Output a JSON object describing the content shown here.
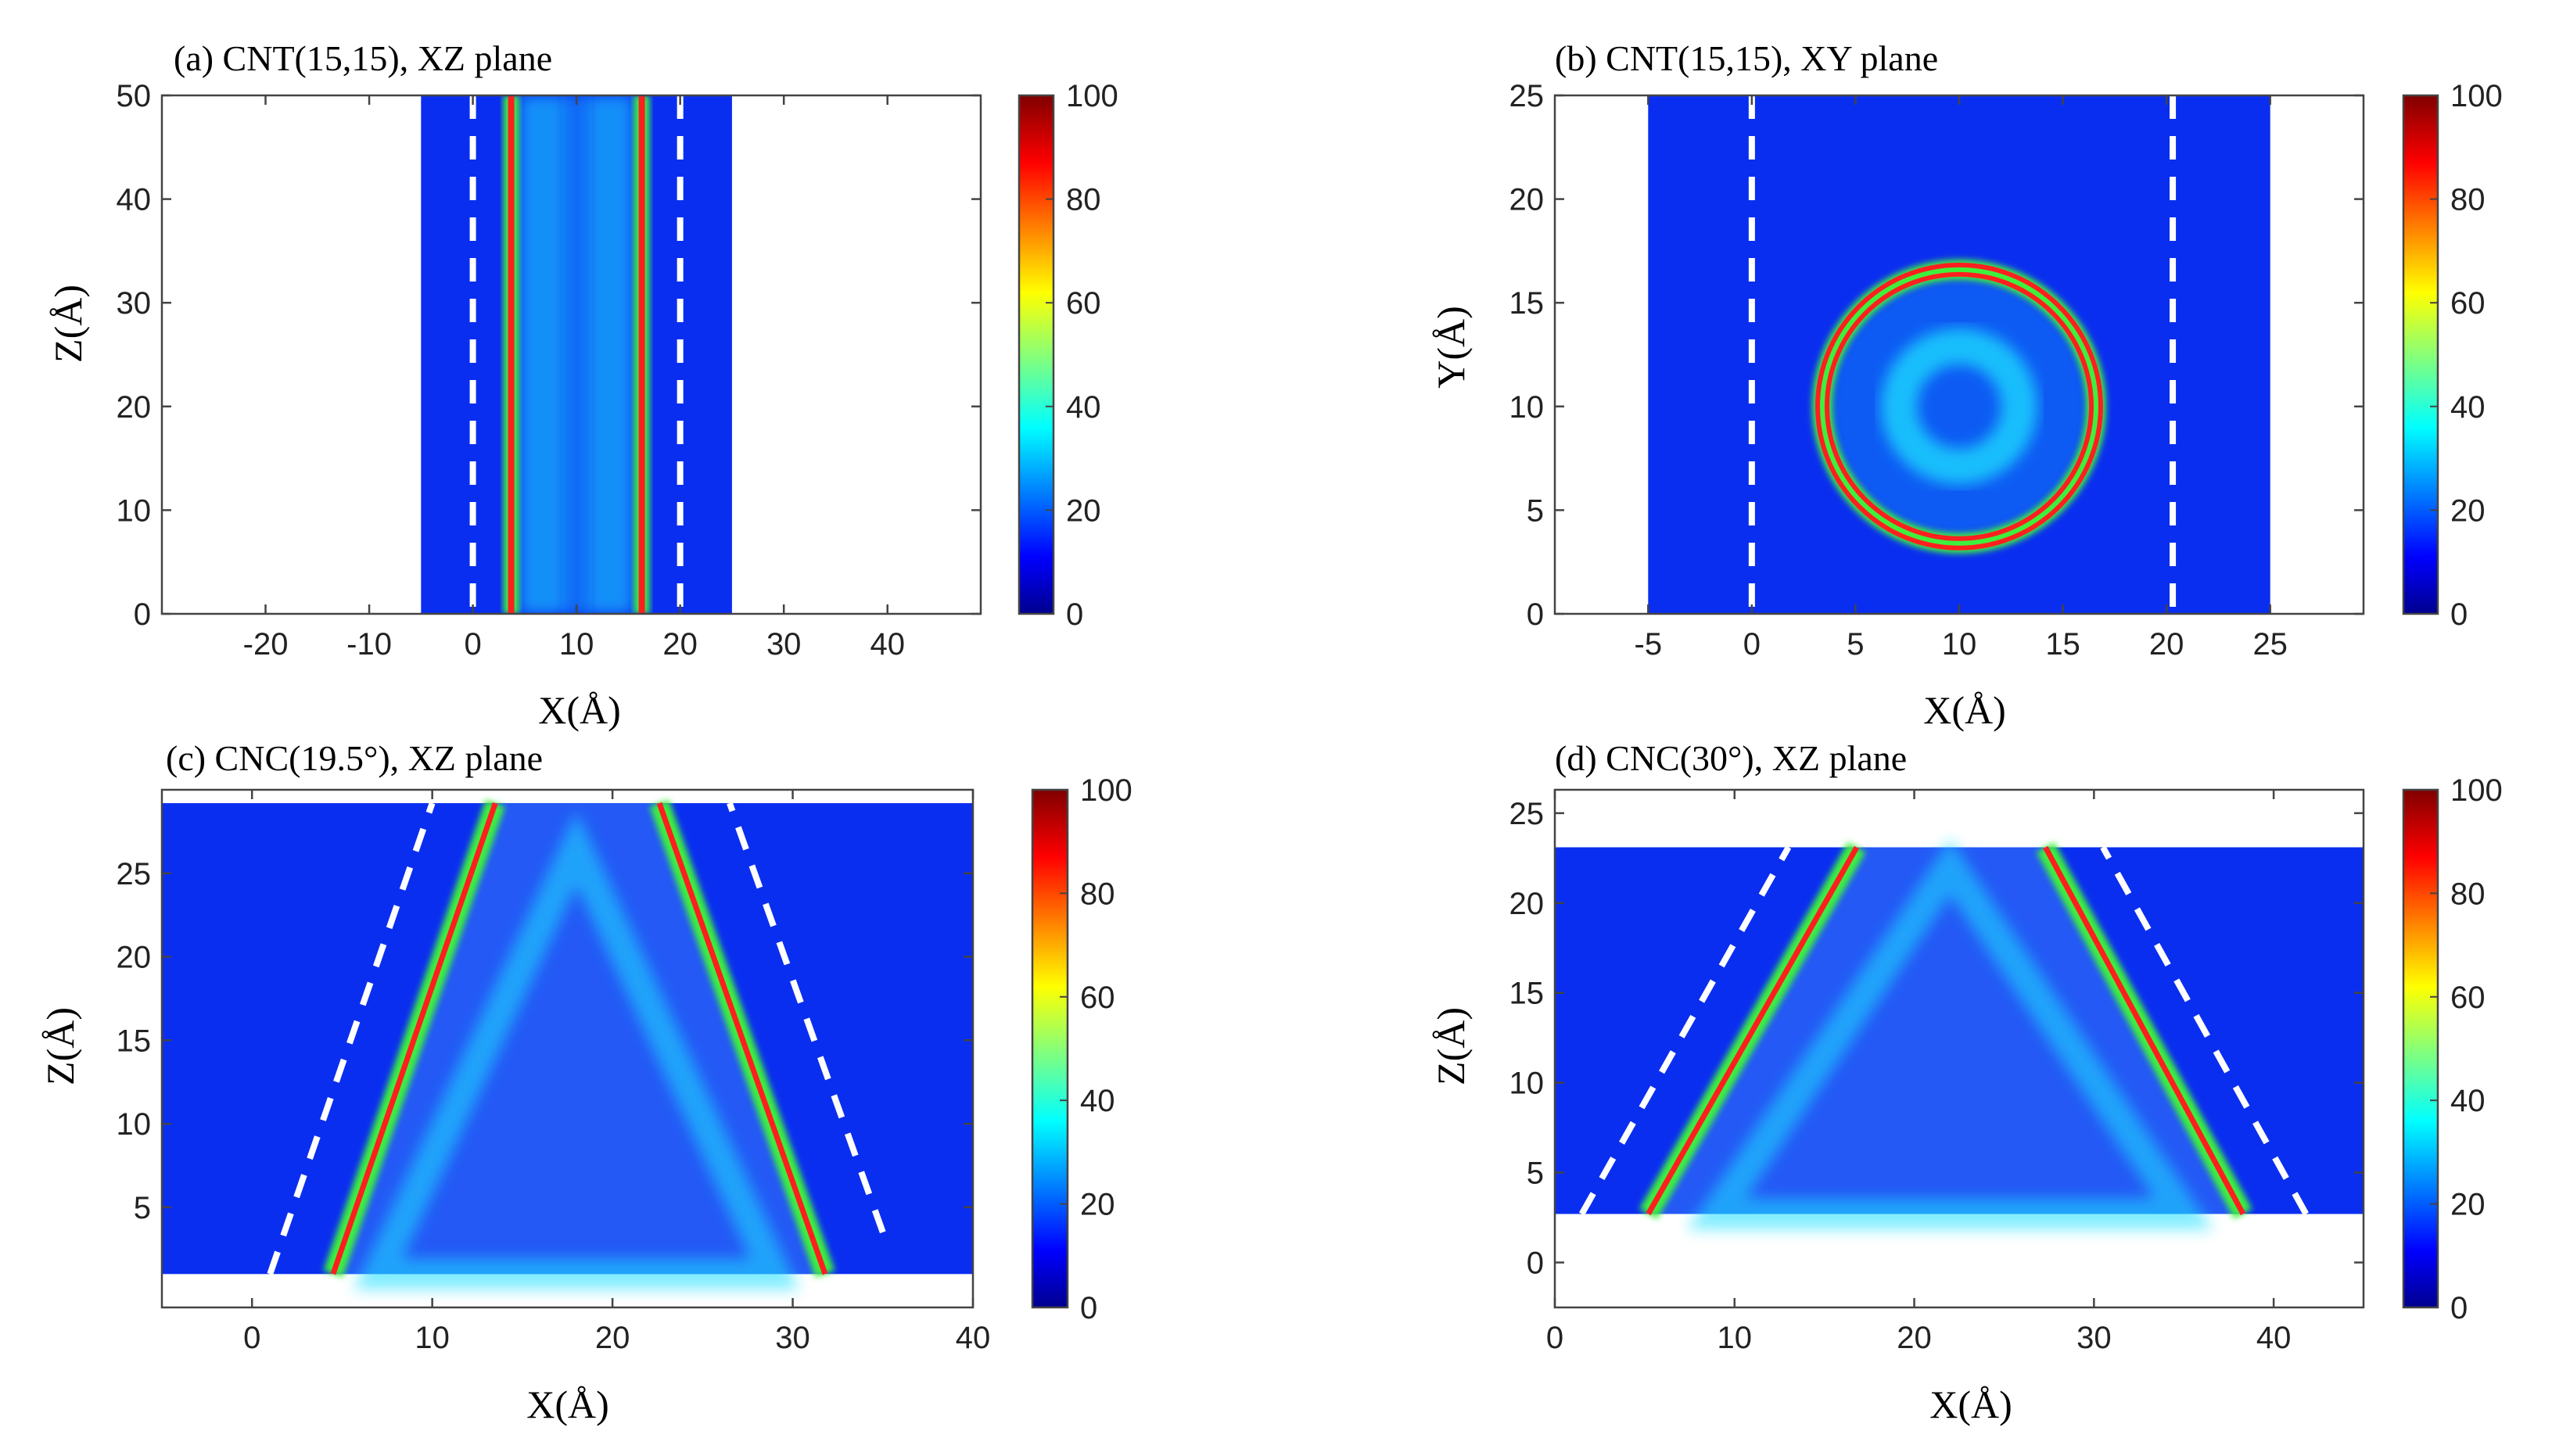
{
  "colors": {
    "background_blue": "#0a2ef0",
    "halo_cyan": "#1fe0ff",
    "shell_green": "#3cf03c",
    "shell_red": "#ff1f1f",
    "wall_line": "#ffffff",
    "axis": "#444444"
  },
  "chart_data": [
    {
      "id": "a",
      "type": "heatmap",
      "title": "(a) CNT(15,15), XZ plane",
      "xlabel": "X(Å)",
      "ylabel": "Z(Å)",
      "xlim": [
        -30,
        49
      ],
      "ylim": [
        0,
        50
      ],
      "xticks": [
        -20,
        -10,
        0,
        10,
        20,
        30,
        40
      ],
      "yticks": [
        0,
        10,
        20,
        30,
        40,
        50
      ],
      "field_x_range": [
        -5,
        25
      ],
      "field_y_range": [
        0,
        50
      ],
      "structure": {
        "kind": "tube",
        "walls_x": [
          3.7,
          16.3
        ],
        "inner_rings_x": [
          6.8,
          13.2
        ]
      },
      "dashed_walls_x": [
        0,
        20
      ],
      "colorbar": {
        "min": 0,
        "max": 100,
        "ticks": [
          0,
          20,
          40,
          60,
          80,
          100
        ]
      }
    },
    {
      "id": "b",
      "type": "heatmap",
      "title": "(b) CNT(15,15), XY plane",
      "xlabel": "X(Å)",
      "ylabel": "Y(Å)",
      "xlim": [
        -9.5,
        29.5
      ],
      "ylim": [
        0,
        25
      ],
      "xticks": [
        -5,
        0,
        5,
        10,
        15,
        20,
        25
      ],
      "yticks": [
        0,
        5,
        10,
        15,
        20,
        25
      ],
      "field_x_range": [
        -5,
        25
      ],
      "field_y_range": [
        0,
        25
      ],
      "structure": {
        "kind": "ring",
        "center": [
          10,
          10
        ],
        "shell_radius": 6.6,
        "inner_radius": 2.9
      },
      "dashed_walls_x": [
        0,
        20.3
      ],
      "colorbar": {
        "min": 0,
        "max": 100,
        "ticks": [
          0,
          20,
          40,
          60,
          80,
          100
        ]
      }
    },
    {
      "id": "c",
      "type": "heatmap",
      "title": "(c) CNC(19.5°), XZ plane",
      "xlabel": "X(Å)",
      "ylabel": "Z(Å)",
      "xlim": [
        -5,
        40
      ],
      "ylim": [
        -1,
        30
      ],
      "xticks": [
        0,
        10,
        20,
        30,
        40
      ],
      "yticks": [
        5,
        10,
        15,
        20,
        25
      ],
      "field_x_range": [
        -5,
        40
      ],
      "field_y_range": [
        1,
        29.2
      ],
      "structure": {
        "kind": "cone",
        "shell_left": [
          [
            4.5,
            1
          ],
          [
            13.5,
            29.2
          ]
        ],
        "shell_right": [
          [
            31.8,
            1
          ],
          [
            22.6,
            29.2
          ]
        ],
        "inner_apex": [
          18,
          26.5
        ],
        "inner_base_x": [
          7,
          29
        ]
      },
      "dashed_left": [
        [
          1,
          1
        ],
        [
          10,
          29.2
        ]
      ],
      "dashed_right": [
        [
          35,
          3.5
        ],
        [
          26.5,
          29.2
        ]
      ],
      "colorbar": {
        "min": 0,
        "max": 100,
        "ticks": [
          0,
          20,
          40,
          60,
          80,
          100
        ]
      }
    },
    {
      "id": "d",
      "type": "heatmap",
      "title": "(d) CNC(30°), XZ plane",
      "xlabel": "X(Å)",
      "ylabel": "Z(Å)",
      "xlim": [
        0,
        45
      ],
      "ylim": [
        -2.5,
        26.3
      ],
      "xticks": [
        0,
        10,
        20,
        30,
        40
      ],
      "yticks": [
        0,
        5,
        10,
        15,
        20,
        25
      ],
      "field_x_range": [
        0,
        45
      ],
      "field_y_range": [
        2.7,
        23.1
      ],
      "structure": {
        "kind": "cone",
        "shell_left": [
          [
            5.2,
            2.7
          ],
          [
            16.8,
            23.1
          ]
        ],
        "shell_right": [
          [
            38.3,
            2.7
          ],
          [
            27.3,
            23.1
          ]
        ],
        "inner_apex": [
          22,
          22
        ],
        "inner_base_x": [
          9,
          35
        ]
      },
      "dashed_left": [
        [
          1.5,
          2.7
        ],
        [
          13,
          23.1
        ]
      ],
      "dashed_right": [
        [
          41.8,
          2.7
        ],
        [
          30.5,
          23.1
        ]
      ],
      "colorbar": {
        "min": 0,
        "max": 100,
        "ticks": [
          0,
          20,
          40,
          60,
          80,
          100
        ]
      }
    }
  ]
}
